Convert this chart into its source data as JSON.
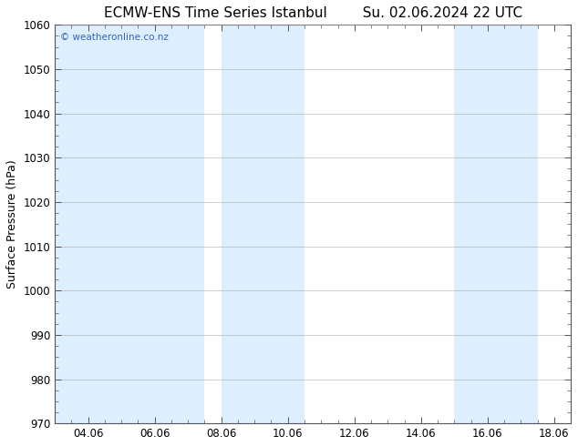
{
  "title_left": "ECMW-ENS Time Series Istanbul",
  "title_right": "Su. 02.06.2024 22 UTC",
  "ylabel": "Surface Pressure (hPa)",
  "ylim": [
    970,
    1060
  ],
  "yticks": [
    970,
    980,
    990,
    1000,
    1010,
    1020,
    1030,
    1040,
    1050,
    1060
  ],
  "xlim_start": 3.0,
  "xlim_end": 18.5,
  "xtick_labels": [
    "04.06",
    "06.06",
    "08.06",
    "10.06",
    "12.06",
    "14.06",
    "16.06",
    "18.06"
  ],
  "xtick_positions": [
    4,
    6,
    8,
    10,
    12,
    14,
    16,
    18
  ],
  "shaded_bands": [
    {
      "x_start": 3.0,
      "x_end": 7.5
    },
    {
      "x_start": 8.0,
      "x_end": 10.5
    },
    {
      "x_start": 15.0,
      "x_end": 17.5
    }
  ],
  "band_color": "#ddeeff",
  "background_color": "#ffffff",
  "plot_bg_color": "#ffffff",
  "watermark_text": "© weatheronline.co.nz",
  "watermark_color": "#3366bb",
  "title_fontsize": 11,
  "tick_fontsize": 8.5,
  "ylabel_fontsize": 9,
  "grid_color": "#aaaaaa",
  "border_color": "#555555",
  "minor_tick_count": 3
}
